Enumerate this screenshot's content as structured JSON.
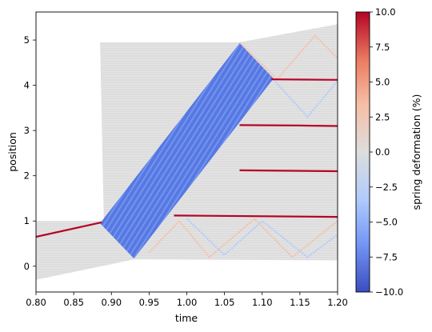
{
  "chart_data": {
    "type": "heatmap",
    "xlabel": "time",
    "ylabel": "position",
    "colorbar_label": "spring deformation (%)",
    "xlim": [
      0.8,
      1.2
    ],
    "ylim": [
      -0.57,
      5.62
    ],
    "x_ticks": [
      0.8,
      0.85,
      0.9,
      0.95,
      1.0,
      1.05,
      1.1,
      1.15,
      1.2
    ],
    "x_tick_labels": [
      "0.80",
      "0.85",
      "0.90",
      "0.95",
      "1.00",
      "1.05",
      "1.10",
      "1.15",
      "1.20"
    ],
    "y_ticks": [
      0,
      1,
      2,
      3,
      4,
      5
    ],
    "y_tick_labels": [
      "0",
      "1",
      "2",
      "3",
      "4",
      "5"
    ],
    "colorbar": {
      "range": [
        -10.0,
        10.0
      ],
      "ticks": [
        -10.0,
        -7.5,
        -5.0,
        -2.5,
        0.0,
        2.5,
        5.0,
        7.5,
        10.0
      ],
      "tick_labels": [
        "−10.0",
        "−7.5",
        "−5.0",
        "−2.5",
        "0.0",
        "2.5",
        "5.0",
        "7.5",
        "10.0"
      ],
      "colormap": "coolwarm",
      "colors": [
        "#3b4cc0",
        "#7396f5",
        "#b0cbfc",
        "#dddddd",
        "#f6bfa6",
        "#ea7b60",
        "#b40426"
      ]
    },
    "background_band": {
      "color": "#dddddd",
      "lower_edge": [
        [
          0.8,
          -0.3
        ],
        [
          0.93,
          0.15
        ],
        [
          1.2,
          0.13
        ]
      ],
      "upper_edge": [
        [
          0.8,
          1.0
        ],
        [
          0.89,
          1.0
        ],
        [
          0.885,
          4.95
        ],
        [
          1.07,
          4.95
        ],
        [
          1.2,
          5.35
        ]
      ]
    },
    "compression_band": {
      "color": "#4a6fe3",
      "polygon": [
        [
          0.885,
          0.95
        ],
        [
          0.93,
          0.17
        ],
        [
          1.115,
          4.15
        ],
        [
          1.07,
          4.93
        ]
      ]
    },
    "red_lines": [
      {
        "points": [
          [
            0.8,
            0.65
          ],
          [
            0.887,
            0.97
          ]
        ]
      },
      {
        "points": [
          [
            0.983,
            1.12
          ],
          [
            1.2,
            1.09
          ]
        ]
      },
      {
        "points": [
          [
            1.07,
            2.12
          ],
          [
            1.2,
            2.1
          ]
        ]
      },
      {
        "points": [
          [
            1.07,
            3.12
          ],
          [
            1.15,
            3.11
          ],
          [
            1.2,
            3.1
          ]
        ]
      },
      {
        "points": [
          [
            1.112,
            4.13
          ],
          [
            1.2,
            4.12
          ]
        ]
      }
    ],
    "reflection_waves": [
      {
        "color": "#f6bfa6",
        "points": [
          [
            1.07,
            4.95
          ],
          [
            1.12,
            4.13
          ],
          [
            1.17,
            5.1
          ],
          [
            1.2,
            4.6
          ]
        ]
      },
      {
        "color": "#b0cbfc",
        "points": [
          [
            1.115,
            4.13
          ],
          [
            1.16,
            3.3
          ],
          [
            1.2,
            4.1
          ]
        ]
      },
      {
        "color": "#f6bfa6",
        "points": [
          [
            0.95,
            0.3
          ],
          [
            0.99,
            1.0
          ],
          [
            1.03,
            0.2
          ],
          [
            1.09,
            1.05
          ],
          [
            1.14,
            0.2
          ],
          [
            1.2,
            1.0
          ]
        ]
      },
      {
        "color": "#b0cbfc",
        "points": [
          [
            1.0,
            1.05
          ],
          [
            1.05,
            0.25
          ],
          [
            1.1,
            1.0
          ],
          [
            1.16,
            0.2
          ],
          [
            1.2,
            0.7
          ]
        ]
      }
    ]
  }
}
